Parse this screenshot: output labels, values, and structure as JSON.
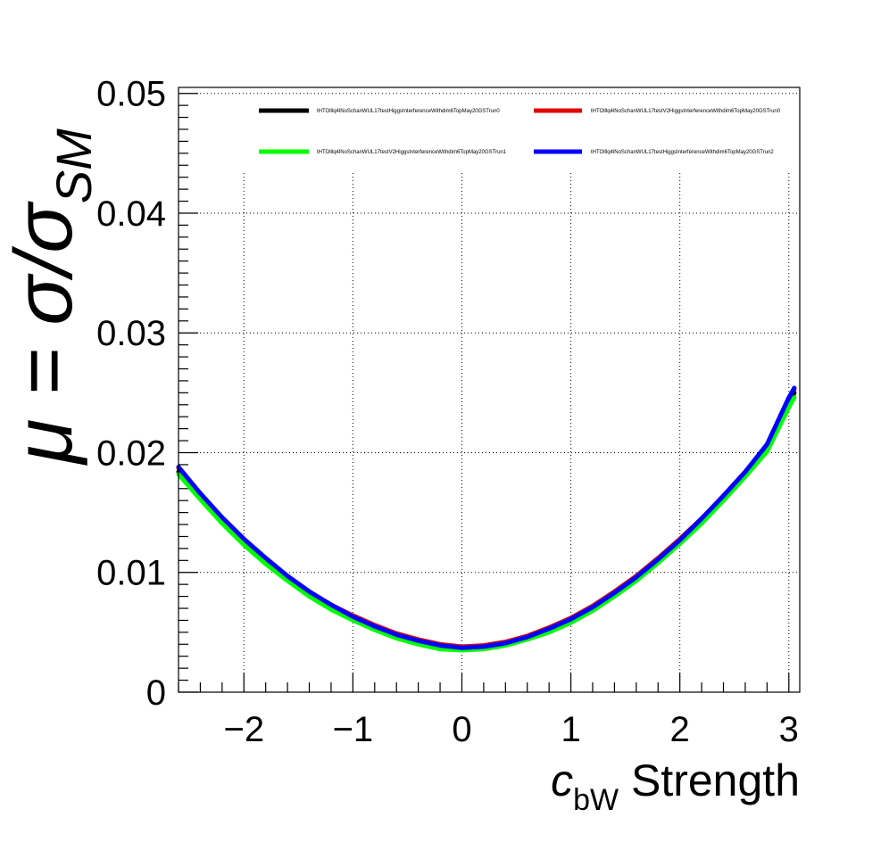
{
  "chart_data": {
    "type": "line",
    "title": "",
    "xlabel": {
      "symbol": "c",
      "subscript": "bW",
      "suffix": " Strength"
    },
    "ylabel": {
      "lead": "μ = σ/σ",
      "subscript": "SM"
    },
    "xlim": [
      -2.6,
      3.1
    ],
    "ylim": [
      0,
      0.0505
    ],
    "x_ticks": [
      -2,
      -1,
      0,
      1,
      2,
      3
    ],
    "x_tick_labels": [
      "−2",
      "−1",
      "0",
      "1",
      "2",
      "3"
    ],
    "y_ticks": [
      0,
      0.01,
      0.02,
      0.03,
      0.04,
      0.05
    ],
    "y_tick_labels": [
      "0",
      "0.01",
      "0.02",
      "0.03",
      "0.04",
      "0.05"
    ],
    "grid": true,
    "legend_position": "top",
    "x": [
      -2.6,
      -2.4,
      -2.2,
      -2.0,
      -1.8,
      -1.6,
      -1.4,
      -1.2,
      -1.0,
      -0.8,
      -0.6,
      -0.4,
      -0.2,
      0.0,
      0.2,
      0.4,
      0.6,
      0.8,
      1.0,
      1.2,
      1.4,
      1.6,
      1.8,
      2.0,
      2.2,
      2.4,
      2.6,
      2.8,
      3.0,
      3.05
    ],
    "series": [
      {
        "name": "tHTOlllq4lNoSchanWUL17testHiggsInterferenceWithdim6TopMay20GSTrun0",
        "color": "#000000",
        "values": [
          0.0184,
          0.0163,
          0.0143,
          0.0125,
          0.0109,
          0.0095,
          0.0082,
          0.0071,
          0.0062,
          0.0054,
          0.0047,
          0.0042,
          0.0038,
          0.0036,
          0.0037,
          0.004,
          0.0045,
          0.0052,
          0.006,
          0.007,
          0.0082,
          0.0095,
          0.011,
          0.0126,
          0.0143,
          0.0162,
          0.0182,
          0.0203,
          0.024,
          0.025
        ]
      },
      {
        "name": "tHTOlllq4lNoSchanWUL17testV2HiggsInterferenceWithdim6TopMay20GSTrun0",
        "color": "#e00000",
        "values": [
          0.0187,
          0.0165,
          0.0145,
          0.0127,
          0.0111,
          0.0097,
          0.0084,
          0.0073,
          0.0064,
          0.0056,
          0.0049,
          0.0044,
          0.004,
          0.0038,
          0.0039,
          0.0042,
          0.0047,
          0.0054,
          0.0062,
          0.0072,
          0.0084,
          0.0097,
          0.0112,
          0.0128,
          0.0145,
          0.0164,
          0.0184,
          0.0206,
          0.0245,
          0.0253
        ]
      },
      {
        "name": "tHTOlllq4lNoSchanWUL17testV2HiggsInterferenceWithdim6TopMay20GSTrun1",
        "color": "#00ff00",
        "values": [
          0.0182,
          0.0161,
          0.0141,
          0.0123,
          0.0107,
          0.0093,
          0.008,
          0.0069,
          0.006,
          0.0052,
          0.0045,
          0.004,
          0.0036,
          0.0035,
          0.0036,
          0.0039,
          0.0044,
          0.005,
          0.0058,
          0.0068,
          0.008,
          0.0093,
          0.0108,
          0.0124,
          0.0141,
          0.016,
          0.018,
          0.0201,
          0.0238,
          0.0246
        ]
      },
      {
        "name": "tHTOlllq4lNoSchanWUL17testHiggsInterferenceWithdim6TopMay20GSTrun2",
        "color": "#0000ff",
        "values": [
          0.0188,
          0.0166,
          0.0146,
          0.0128,
          0.0112,
          0.0097,
          0.0084,
          0.0073,
          0.0063,
          0.0055,
          0.0048,
          0.0043,
          0.0039,
          0.0037,
          0.0038,
          0.0041,
          0.0046,
          0.0053,
          0.0061,
          0.0071,
          0.0083,
          0.0096,
          0.0111,
          0.0127,
          0.0145,
          0.0164,
          0.0184,
          0.0207,
          0.0246,
          0.0254
        ]
      }
    ]
  }
}
